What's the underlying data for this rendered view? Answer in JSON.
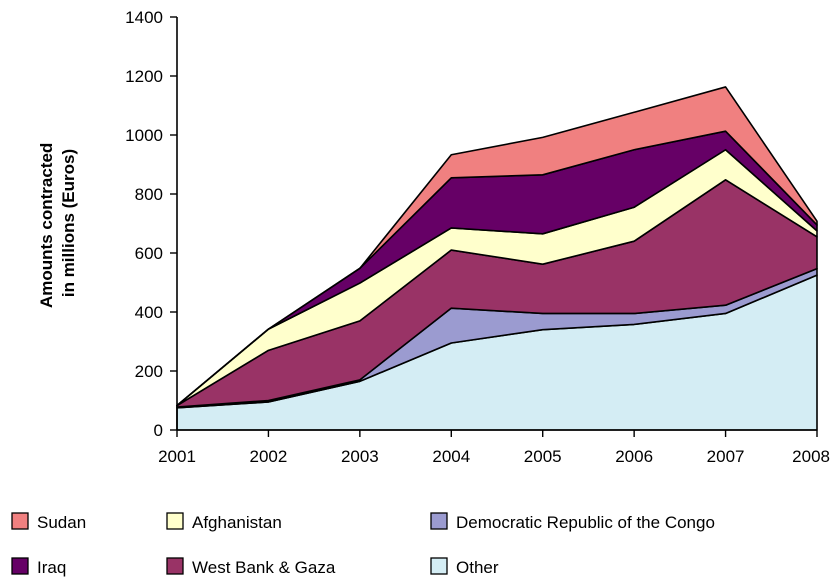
{
  "chart_data": {
    "type": "area",
    "stacked": true,
    "title": "",
    "xlabel": "",
    "ylabel": "Amounts contracted in millions (Euros)",
    "ylabel_lines": [
      "Amounts contracted",
      "in millions (Euros)"
    ],
    "x": [
      "2001",
      "2002",
      "2003",
      "2004",
      "2005",
      "2006",
      "2007",
      "2008"
    ],
    "ylim": [
      0,
      1400
    ],
    "yticks": [
      "0",
      "200",
      "400",
      "600",
      "800",
      "1000",
      "1200",
      "1400"
    ],
    "grid": false,
    "legend_position": "bottom",
    "series": [
      {
        "name": "Other",
        "color": "#d4edf4",
        "values": [
          75,
          95,
          165,
          295,
          340,
          358,
          395,
          525
        ]
      },
      {
        "name": "Democratic Republic of the Congo",
        "color": "#9b9bd0",
        "values": [
          3,
          5,
          5,
          118,
          55,
          37,
          28,
          22
        ]
      },
      {
        "name": "West Bank & Gaza",
        "color": "#993366",
        "values": [
          5,
          170,
          200,
          197,
          167,
          245,
          425,
          108
        ]
      },
      {
        "name": "Afghanistan",
        "color": "#ffffcc",
        "values": [
          0,
          72,
          128,
          75,
          103,
          115,
          102,
          20
        ]
      },
      {
        "name": "Iraq",
        "color": "#660066",
        "values": [
          0,
          0,
          50,
          170,
          200,
          195,
          63,
          20
        ]
      },
      {
        "name": "Sudan",
        "color": "#f08080",
        "values": [
          0,
          0,
          0,
          78,
          127,
          127,
          150,
          13
        ]
      }
    ],
    "legend_order": [
      [
        "Sudan",
        "Afghanistan",
        "Democratic Republic of the Congo"
      ],
      [
        "Iraq",
        "West Bank & Gaza",
        "Other"
      ]
    ]
  }
}
